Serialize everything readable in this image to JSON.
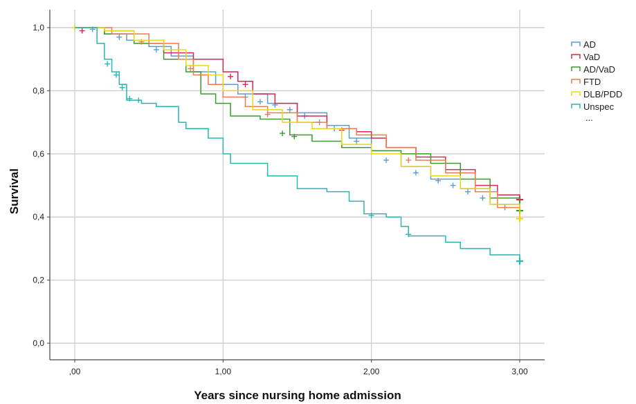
{
  "chart_data": {
    "type": "line",
    "xlabel": "Years since nursing home admission",
    "ylabel": "Survival",
    "xlim": [
      0,
      3
    ],
    "ylim": [
      0,
      1
    ],
    "x_ticks": [
      ",00",
      "1,00",
      "2,00",
      "3,00"
    ],
    "y_ticks": [
      "0,0",
      "0,2",
      "0,4",
      "0,6",
      "0,8",
      "1,0"
    ],
    "grid": true,
    "legend_position": "top-right",
    "legend_more": "...",
    "series": [
      {
        "name": "AD",
        "color": "#5b9bd5",
        "points": [
          [
            0,
            1.0
          ],
          [
            0.1,
            1.0
          ],
          [
            0.2,
            0.98
          ],
          [
            0.35,
            0.96
          ],
          [
            0.5,
            0.94
          ],
          [
            0.65,
            0.91
          ],
          [
            0.8,
            0.86
          ],
          [
            0.95,
            0.82
          ],
          [
            1.1,
            0.79
          ],
          [
            1.3,
            0.76
          ],
          [
            1.5,
            0.73
          ],
          [
            1.7,
            0.69
          ],
          [
            1.85,
            0.65
          ],
          [
            2.0,
            0.61
          ],
          [
            2.2,
            0.56
          ],
          [
            2.4,
            0.52
          ],
          [
            2.6,
            0.49
          ],
          [
            2.8,
            0.44
          ],
          [
            3.0,
            0.41
          ]
        ],
        "censor": [
          [
            0.12,
            0.995
          ],
          [
            0.3,
            0.97
          ],
          [
            0.55,
            0.93
          ],
          [
            0.85,
            0.85
          ],
          [
            1.15,
            0.78
          ],
          [
            1.25,
            0.765
          ],
          [
            1.35,
            0.755
          ],
          [
            1.45,
            0.74
          ],
          [
            1.55,
            0.72
          ],
          [
            1.65,
            0.7
          ],
          [
            1.75,
            0.68
          ],
          [
            1.9,
            0.64
          ],
          [
            2.1,
            0.58
          ],
          [
            2.3,
            0.54
          ],
          [
            2.45,
            0.515
          ],
          [
            2.55,
            0.5
          ],
          [
            2.65,
            0.48
          ],
          [
            2.75,
            0.46
          ],
          [
            2.9,
            0.43
          ]
        ]
      },
      {
        "name": "VaD",
        "color": "#d7264f",
        "points": [
          [
            0,
            1.0
          ],
          [
            0.2,
            0.99
          ],
          [
            0.4,
            0.96
          ],
          [
            0.6,
            0.92
          ],
          [
            0.8,
            0.9
          ],
          [
            1.0,
            0.86
          ],
          [
            1.1,
            0.83
          ],
          [
            1.2,
            0.79
          ],
          [
            1.35,
            0.76
          ],
          [
            1.5,
            0.72
          ],
          [
            1.7,
            0.68
          ],
          [
            1.9,
            0.67
          ],
          [
            2.0,
            0.65
          ],
          [
            2.1,
            0.62
          ],
          [
            2.3,
            0.59
          ],
          [
            2.5,
            0.55
          ],
          [
            2.7,
            0.5
          ],
          [
            2.85,
            0.47
          ],
          [
            3.0,
            0.455
          ]
        ],
        "censor": [
          [
            0.05,
            0.99
          ],
          [
            1.05,
            0.845
          ],
          [
            1.15,
            0.82
          ],
          [
            1.8,
            0.675
          ],
          [
            3.0,
            0.455
          ]
        ]
      },
      {
        "name": "AD/VaD",
        "color": "#3a9a2f",
        "points": [
          [
            0,
            1.0
          ],
          [
            0.2,
            0.98
          ],
          [
            0.4,
            0.95
          ],
          [
            0.6,
            0.9
          ],
          [
            0.75,
            0.86
          ],
          [
            0.85,
            0.79
          ],
          [
            0.95,
            0.76
          ],
          [
            1.05,
            0.72
          ],
          [
            1.25,
            0.71
          ],
          [
            1.45,
            0.66
          ],
          [
            1.6,
            0.64
          ],
          [
            1.8,
            0.62
          ],
          [
            2.0,
            0.61
          ],
          [
            2.2,
            0.6
          ],
          [
            2.4,
            0.57
          ],
          [
            2.6,
            0.52
          ],
          [
            2.8,
            0.46
          ],
          [
            3.0,
            0.42
          ]
        ],
        "censor": [
          [
            1.4,
            0.665
          ],
          [
            1.48,
            0.655
          ],
          [
            3.0,
            0.42
          ]
        ]
      },
      {
        "name": "FTD",
        "color": "#f07a4a",
        "points": [
          [
            0,
            1.0
          ],
          [
            0.25,
            0.98
          ],
          [
            0.5,
            0.95
          ],
          [
            0.7,
            0.9
          ],
          [
            0.8,
            0.85
          ],
          [
            0.9,
            0.82
          ],
          [
            1.0,
            0.78
          ],
          [
            1.15,
            0.75
          ],
          [
            1.3,
            0.73
          ],
          [
            1.5,
            0.7
          ],
          [
            1.7,
            0.68
          ],
          [
            1.9,
            0.66
          ],
          [
            2.1,
            0.62
          ],
          [
            2.3,
            0.58
          ],
          [
            2.5,
            0.54
          ],
          [
            2.7,
            0.48
          ],
          [
            2.85,
            0.43
          ],
          [
            3.0,
            0.4
          ]
        ],
        "censor": [
          [
            0.45,
            0.955
          ],
          [
            0.78,
            0.87
          ],
          [
            1.3,
            0.725
          ],
          [
            2.25,
            0.58
          ]
        ]
      },
      {
        "name": "DLB/PDD",
        "color": "#e8d81a",
        "points": [
          [
            0,
            1.0
          ],
          [
            0.2,
            0.99
          ],
          [
            0.4,
            0.96
          ],
          [
            0.6,
            0.93
          ],
          [
            0.75,
            0.88
          ],
          [
            0.9,
            0.85
          ],
          [
            1.0,
            0.8
          ],
          [
            1.2,
            0.74
          ],
          [
            1.4,
            0.7
          ],
          [
            1.6,
            0.68
          ],
          [
            1.8,
            0.63
          ],
          [
            2.0,
            0.6
          ],
          [
            2.2,
            0.56
          ],
          [
            2.4,
            0.53
          ],
          [
            2.6,
            0.49
          ],
          [
            2.8,
            0.44
          ],
          [
            3.0,
            0.395
          ]
        ],
        "censor": [
          [
            0.0,
            1.0
          ],
          [
            3.0,
            0.395
          ]
        ]
      },
      {
        "name": "Unspec",
        "color": "#2ab5ad",
        "points": [
          [
            0,
            1.0
          ],
          [
            0.15,
            0.95
          ],
          [
            0.2,
            0.9
          ],
          [
            0.25,
            0.86
          ],
          [
            0.3,
            0.82
          ],
          [
            0.35,
            0.77
          ],
          [
            0.45,
            0.76
          ],
          [
            0.55,
            0.75
          ],
          [
            0.7,
            0.7
          ],
          [
            0.75,
            0.68
          ],
          [
            0.9,
            0.65
          ],
          [
            1.0,
            0.6
          ],
          [
            1.05,
            0.57
          ],
          [
            1.3,
            0.53
          ],
          [
            1.5,
            0.49
          ],
          [
            1.7,
            0.48
          ],
          [
            1.85,
            0.45
          ],
          [
            1.95,
            0.41
          ],
          [
            2.1,
            0.4
          ],
          [
            2.2,
            0.37
          ],
          [
            2.25,
            0.34
          ],
          [
            2.5,
            0.32
          ],
          [
            2.6,
            0.3
          ],
          [
            2.8,
            0.28
          ],
          [
            3.0,
            0.26
          ]
        ],
        "censor": [
          [
            0.22,
            0.885
          ],
          [
            0.28,
            0.85
          ],
          [
            0.32,
            0.81
          ],
          [
            0.37,
            0.775
          ],
          [
            0.43,
            0.77
          ],
          [
            2.0,
            0.405
          ],
          [
            2.25,
            0.345
          ],
          [
            3.0,
            0.26
          ]
        ]
      }
    ]
  }
}
